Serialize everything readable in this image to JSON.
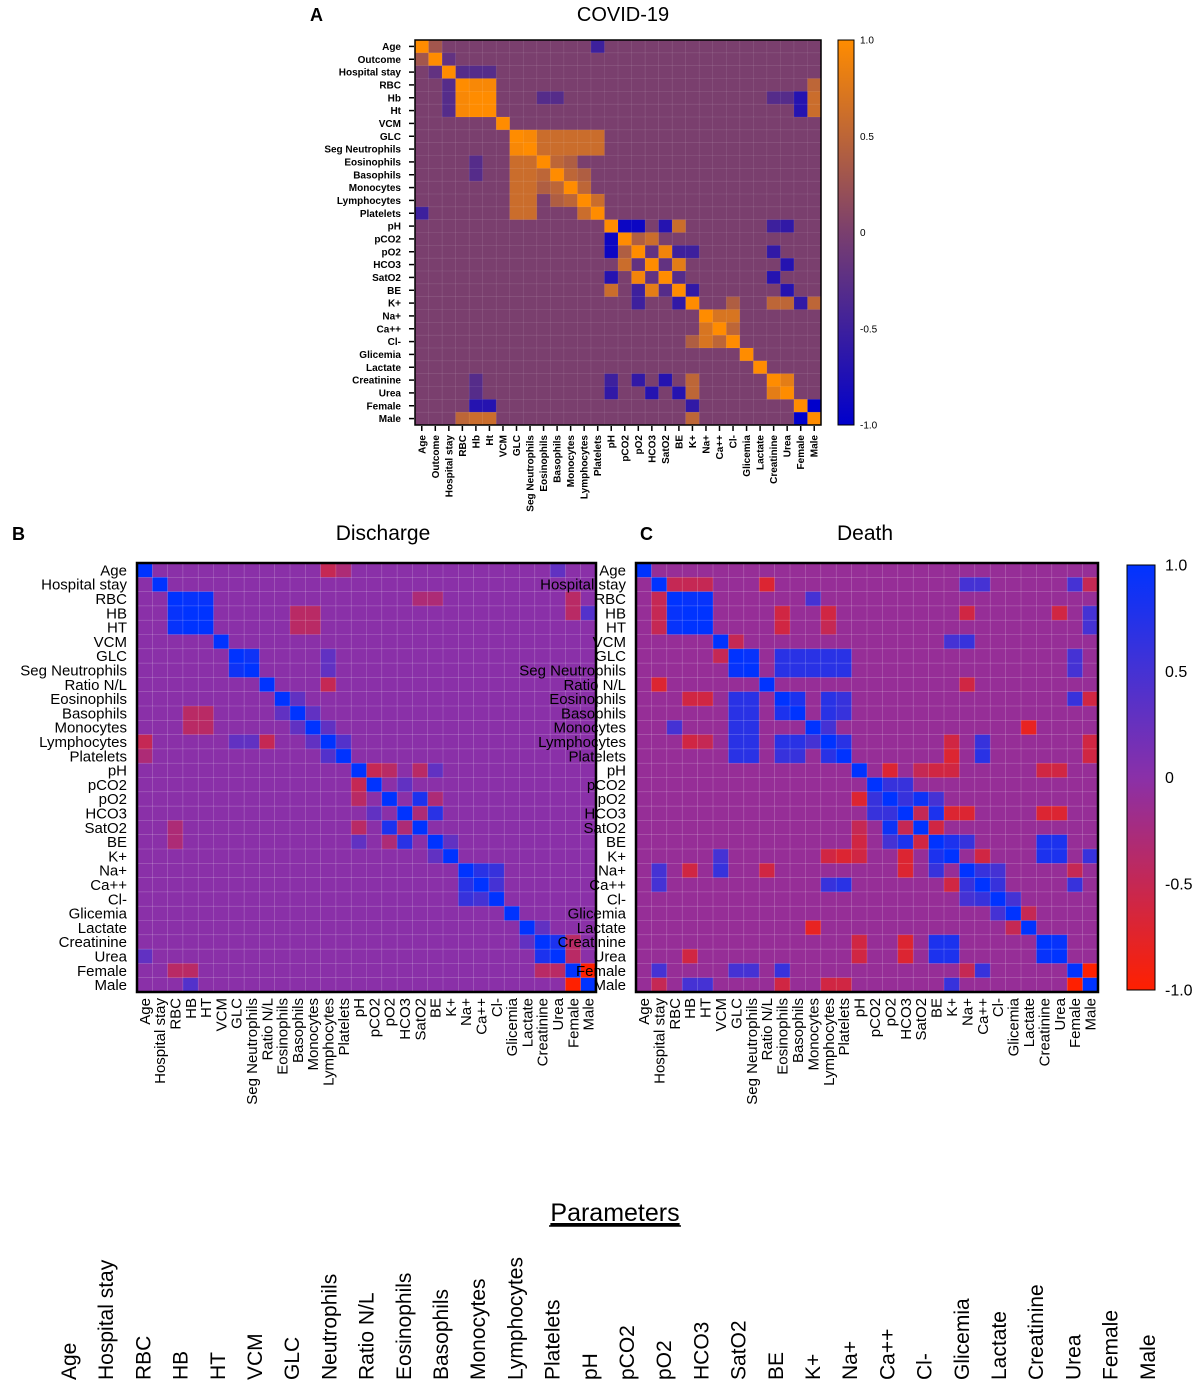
{
  "chart_data": [
    {
      "type": "heatmap",
      "panel_letter": "A",
      "title": "COVID-19",
      "labels": [
        "Age",
        "Outcome",
        "Hospital stay",
        "RBC",
        "Hb",
        "Ht",
        "VCM",
        "GLC",
        "Seg Neutrophils",
        "Eosinophils",
        "Basophils",
        "Monocytes",
        "Lymphocytes",
        "Platelets",
        "pH",
        "pCO2",
        "pO2",
        "HCO3",
        "SatO2",
        "BE",
        "K+",
        "Na+",
        "Ca++",
        "Cl-",
        "Glicemia",
        "Lactate",
        "Creatinine",
        "Urea",
        "Female",
        "Male"
      ],
      "value_range": [
        -1,
        1
      ],
      "colorbar_ticks": [
        "1.0",
        "0.5",
        "0",
        "-0.5",
        "-1.0"
      ],
      "colormap": {
        "low": "#0000cc",
        "mid": "#7a3f6e",
        "high": "#ff8c00"
      },
      "diagonal": 1,
      "default_value": 0,
      "cells": [
        [
          0,
          1,
          0.3
        ],
        [
          0,
          13,
          -0.5
        ],
        [
          1,
          2,
          -0.2
        ],
        [
          2,
          3,
          -0.3
        ],
        [
          2,
          4,
          -0.3
        ],
        [
          2,
          5,
          -0.3
        ],
        [
          3,
          4,
          0.95
        ],
        [
          3,
          5,
          0.95
        ],
        [
          4,
          5,
          1.0
        ],
        [
          4,
          28,
          -0.7
        ],
        [
          5,
          28,
          -0.7
        ],
        [
          4,
          29,
          0.6
        ],
        [
          5,
          29,
          0.6
        ],
        [
          3,
          29,
          0.5
        ],
        [
          4,
          9,
          -0.3
        ],
        [
          4,
          10,
          -0.3
        ],
        [
          4,
          26,
          -0.3
        ],
        [
          4,
          27,
          -0.3
        ],
        [
          7,
          8,
          0.95
        ],
        [
          7,
          9,
          0.6
        ],
        [
          7,
          10,
          0.6
        ],
        [
          7,
          11,
          0.6
        ],
        [
          7,
          12,
          0.6
        ],
        [
          7,
          13,
          0.6
        ],
        [
          8,
          9,
          0.6
        ],
        [
          8,
          10,
          0.6
        ],
        [
          8,
          11,
          0.6
        ],
        [
          8,
          12,
          0.6
        ],
        [
          8,
          13,
          0.6
        ],
        [
          9,
          10,
          0.5
        ],
        [
          10,
          11,
          0.5
        ],
        [
          11,
          12,
          0.5
        ],
        [
          12,
          13,
          0.6
        ],
        [
          9,
          11,
          0.4
        ],
        [
          10,
          12,
          0.4
        ],
        [
          14,
          15,
          -0.9
        ],
        [
          14,
          16,
          -0.9
        ],
        [
          14,
          18,
          -0.7
        ],
        [
          14,
          19,
          0.6
        ],
        [
          14,
          27,
          -0.6
        ],
        [
          14,
          26,
          -0.5
        ],
        [
          15,
          16,
          0.4
        ],
        [
          15,
          17,
          0.6
        ],
        [
          16,
          17,
          -0.2
        ],
        [
          16,
          18,
          0.9
        ],
        [
          16,
          19,
          -0.5
        ],
        [
          17,
          18,
          -0.2
        ],
        [
          17,
          19,
          0.8
        ],
        [
          18,
          19,
          -0.3
        ],
        [
          17,
          27,
          -0.7
        ],
        [
          19,
          27,
          -0.7
        ],
        [
          19,
          20,
          -0.6
        ],
        [
          16,
          20,
          -0.5
        ],
        [
          20,
          26,
          0.5
        ],
        [
          20,
          27,
          0.5
        ],
        [
          20,
          28,
          -0.6
        ],
        [
          20,
          29,
          0.5
        ],
        [
          21,
          22,
          0.7
        ],
        [
          21,
          23,
          0.7
        ],
        [
          22,
          23,
          0.5
        ],
        [
          23,
          20,
          0.4
        ],
        [
          26,
          27,
          0.8
        ],
        [
          26,
          16,
          -0.6
        ],
        [
          26,
          18,
          -0.7
        ],
        [
          28,
          29,
          -1.0
        ]
      ]
    },
    {
      "type": "heatmap",
      "panel_letter": "B",
      "title": "Discharge",
      "labels": [
        "Age",
        "Hospital stay",
        "RBC",
        "HB",
        "HT",
        "VCM",
        "GLC",
        "Seg Neutrophils",
        "Ratio N/L",
        "Eosinophils",
        "Basophils",
        "Monocytes",
        "Lymphocytes",
        "Platelets",
        "pH",
        "pCO2",
        "pO2",
        "HCO3",
        "SatO2",
        "BE",
        "K+",
        "Na+",
        "Ca++",
        "Cl-",
        "Glicemia",
        "Lactate",
        "Creatinine",
        "Urea",
        "Female",
        "Male"
      ],
      "value_range": [
        -1,
        1
      ],
      "colormap": {
        "low": "#ff2000",
        "mid": "#8a30a8",
        "high": "#0033ff"
      },
      "diagonal": 1,
      "default_value": 0,
      "cells": [
        [
          0,
          12,
          -0.5
        ],
        [
          0,
          13,
          -0.3
        ],
        [
          0,
          27,
          0.3
        ],
        [
          2,
          3,
          0.95
        ],
        [
          2,
          4,
          0.95
        ],
        [
          3,
          4,
          1.0
        ],
        [
          3,
          10,
          -0.4
        ],
        [
          4,
          10,
          -0.4
        ],
        [
          3,
          11,
          -0.4
        ],
        [
          4,
          11,
          -0.4
        ],
        [
          2,
          28,
          -0.4
        ],
        [
          3,
          28,
          -0.4
        ],
        [
          3,
          29,
          0.4
        ],
        [
          6,
          7,
          0.9
        ],
        [
          6,
          12,
          0.3
        ],
        [
          7,
          12,
          0.3
        ],
        [
          8,
          12,
          -0.5
        ],
        [
          9,
          10,
          0.3
        ],
        [
          10,
          11,
          0.3
        ],
        [
          11,
          12,
          0.3
        ],
        [
          12,
          13,
          0.4
        ],
        [
          14,
          15,
          -0.5
        ],
        [
          14,
          16,
          -0.4
        ],
        [
          14,
          18,
          -0.4
        ],
        [
          14,
          19,
          0.3
        ],
        [
          15,
          17,
          0.3
        ],
        [
          16,
          18,
          0.8
        ],
        [
          17,
          19,
          0.7
        ],
        [
          17,
          18,
          -0.3
        ],
        [
          16,
          19,
          -0.3
        ],
        [
          18,
          2,
          -0.3
        ],
        [
          19,
          2,
          -0.3
        ],
        [
          19,
          20,
          0.3
        ],
        [
          21,
          22,
          0.7
        ],
        [
          21,
          23,
          0.6
        ],
        [
          22,
          23,
          0.5
        ],
        [
          26,
          27,
          0.8
        ],
        [
          25,
          26,
          0.3
        ],
        [
          28,
          29,
          -1.0
        ],
        [
          28,
          26,
          -0.4
        ],
        [
          28,
          27,
          -0.4
        ]
      ]
    },
    {
      "type": "heatmap",
      "panel_letter": "C",
      "title": "Death",
      "labels": [
        "Age",
        "Hospital stay",
        "RBC",
        "HB",
        "HT",
        "VCM",
        "GLC",
        "Seg Neutrophils",
        "Ratio N/L",
        "Eosinophils",
        "Basophils",
        "Monocytes",
        "Lymphocytes",
        "Platelets",
        "pH",
        "pCO2",
        "pO2",
        "HCO3",
        "SatO2",
        "BE",
        "K+",
        "Na+",
        "Ca++",
        "Cl-",
        "Glicemia",
        "Lactate",
        "Creatinine",
        "Urea",
        "Female",
        "Male"
      ],
      "value_range": [
        -1,
        1
      ],
      "colorbar_ticks": [
        "1.0",
        "0.5",
        "0",
        "-0.5",
        "-1.0"
      ],
      "colormap": {
        "low": "#ff2000",
        "mid": "#8a30a8",
        "high": "#0033ff"
      },
      "diagonal": 1,
      "default_value": -0.1,
      "cells": [
        [
          1,
          2,
          -0.5
        ],
        [
          1,
          3,
          -0.5
        ],
        [
          1,
          4,
          -0.5
        ],
        [
          1,
          8,
          -0.7
        ],
        [
          1,
          21,
          0.5
        ],
        [
          1,
          22,
          0.5
        ],
        [
          1,
          28,
          0.5
        ],
        [
          1,
          29,
          -0.5
        ],
        [
          2,
          3,
          0.95
        ],
        [
          2,
          4,
          0.95
        ],
        [
          3,
          4,
          1.0
        ],
        [
          2,
          11,
          0.5
        ],
        [
          3,
          9,
          -0.6
        ],
        [
          4,
          9,
          -0.6
        ],
        [
          3,
          12,
          -0.6
        ],
        [
          4,
          12,
          -0.5
        ],
        [
          3,
          21,
          -0.6
        ],
        [
          3,
          27,
          -0.6
        ],
        [
          3,
          29,
          0.5
        ],
        [
          4,
          29,
          0.5
        ],
        [
          5,
          6,
          -0.5
        ],
        [
          5,
          21,
          0.6
        ],
        [
          5,
          20,
          0.5
        ],
        [
          6,
          7,
          0.95
        ],
        [
          6,
          9,
          0.7
        ],
        [
          6,
          10,
          0.7
        ],
        [
          6,
          11,
          0.7
        ],
        [
          6,
          12,
          0.7
        ],
        [
          6,
          13,
          0.7
        ],
        [
          7,
          9,
          0.7
        ],
        [
          7,
          10,
          0.7
        ],
        [
          7,
          11,
          0.7
        ],
        [
          7,
          12,
          0.7
        ],
        [
          7,
          13,
          0.7
        ],
        [
          9,
          10,
          0.8
        ],
        [
          9,
          12,
          0.7
        ],
        [
          10,
          12,
          0.7
        ],
        [
          11,
          12,
          0.5
        ],
        [
          12,
          13,
          0.7
        ],
        [
          10,
          13,
          0.6
        ],
        [
          9,
          13,
          0.6
        ],
        [
          8,
          21,
          -0.6
        ],
        [
          11,
          25,
          -0.8
        ],
        [
          12,
          22,
          0.6
        ],
        [
          13,
          22,
          0.7
        ],
        [
          12,
          20,
          -0.6
        ],
        [
          13,
          20,
          -0.7
        ],
        [
          14,
          16,
          -0.7
        ],
        [
          14,
          18,
          -0.5
        ],
        [
          14,
          19,
          -0.6
        ],
        [
          14,
          20,
          -0.6
        ],
        [
          14,
          26,
          -0.6
        ],
        [
          14,
          27,
          -0.6
        ],
        [
          15,
          16,
          0.6
        ],
        [
          15,
          17,
          0.6
        ],
        [
          16,
          17,
          0.6
        ],
        [
          16,
          18,
          0.9
        ],
        [
          16,
          19,
          0.5
        ],
        [
          17,
          19,
          0.8
        ],
        [
          17,
          18,
          -0.5
        ],
        [
          17,
          20,
          -0.7
        ],
        [
          17,
          21,
          -0.7
        ],
        [
          17,
          26,
          -0.7
        ],
        [
          17,
          27,
          -0.7
        ],
        [
          18,
          19,
          -0.6
        ],
        [
          19,
          20,
          0.8
        ],
        [
          19,
          21,
          0.6
        ],
        [
          19,
          26,
          0.8
        ],
        [
          19,
          27,
          0.8
        ],
        [
          20,
          26,
          0.8
        ],
        [
          20,
          27,
          0.8
        ],
        [
          20,
          22,
          -0.6
        ],
        [
          20,
          29,
          0.6
        ],
        [
          21,
          22,
          0.6
        ],
        [
          21,
          23,
          0.5
        ],
        [
          22,
          23,
          0.6
        ],
        [
          21,
          28,
          -0.5
        ],
        [
          22,
          28,
          0.6
        ],
        [
          23,
          24,
          0.5
        ],
        [
          26,
          27,
          0.95
        ],
        [
          24,
          25,
          -0.5
        ],
        [
          28,
          29,
          -1.0
        ],
        [
          28,
          6,
          0.5
        ],
        [
          28,
          7,
          0.5
        ],
        [
          28,
          9,
          0.6
        ],
        [
          29,
          9,
          -0.6
        ],
        [
          29,
          12,
          -0.6
        ],
        [
          29,
          13,
          -0.6
        ]
      ]
    }
  ],
  "parameters": {
    "heading": "Parameters",
    "items": [
      "Age",
      "Hospital stay",
      "RBC",
      "HB",
      "HT",
      "VCM",
      "GLC",
      "Neutrophils",
      "Ratio N/L",
      "Eosinophils",
      "Basophils",
      "Monocytes",
      "Lymphocytes",
      "Platelets",
      "pH",
      "pCO2",
      "pO2",
      "HCO3",
      "SatO2",
      "BE",
      "K+",
      "Na+",
      "Ca++",
      "Cl-",
      "Glicemia",
      "Lactate",
      "Creatinine",
      "Urea",
      "Female",
      "Male"
    ]
  }
}
